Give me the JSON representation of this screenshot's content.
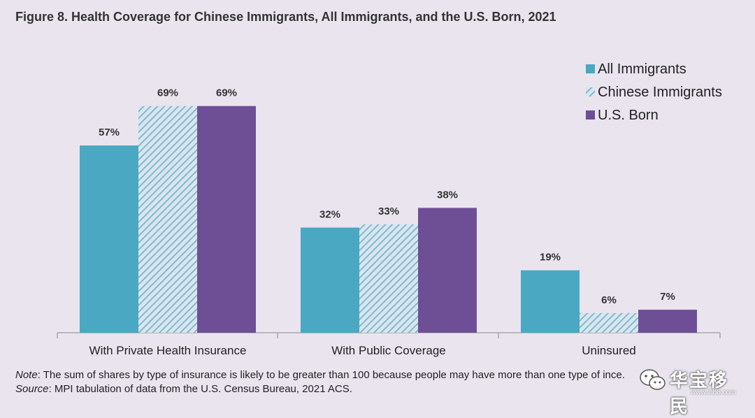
{
  "title": "Figure 8. Health Coverage for Chinese Immigrants, All Immigrants, and the U.S. Born, 2021",
  "note": {
    "note_label": "Note",
    "note_text": ": The sum of shares by type of insurance is likely to be greater than 100 because people may have more than one type of in",
    "note_tail": "ce.",
    "source_label": "Source",
    "source_text": ": MPI tabulation of data from the U.S. Census Bureau, 2021 ACS."
  },
  "watermark": {
    "text": "华宝移民",
    "url": "www.ihb8.com",
    "icon": "wechat-icon"
  },
  "colors": {
    "all_immigrants": "#4aa8c2",
    "chinese_immigrants_stripe": "#78b4cc",
    "chinese_immigrants_bg": "#d9e6ef",
    "us_born": "#6e4f96",
    "background": "#e9e4ee"
  },
  "chart_data": {
    "type": "bar",
    "categories": [
      "With Private Health Insurance",
      "With Public Coverage",
      "Uninsured"
    ],
    "series": [
      {
        "name": "All Immigrants",
        "values": [
          57,
          32,
          19
        ],
        "pattern": "solid"
      },
      {
        "name": "Chinese Immigrants",
        "values": [
          69,
          33,
          6
        ],
        "pattern": "hatched"
      },
      {
        "name": "U.S. Born",
        "values": [
          69,
          38,
          7
        ],
        "pattern": "solid"
      }
    ],
    "value_suffix": "%",
    "ylim": [
      0,
      100
    ],
    "grid": false,
    "legend_position": "top-right"
  }
}
